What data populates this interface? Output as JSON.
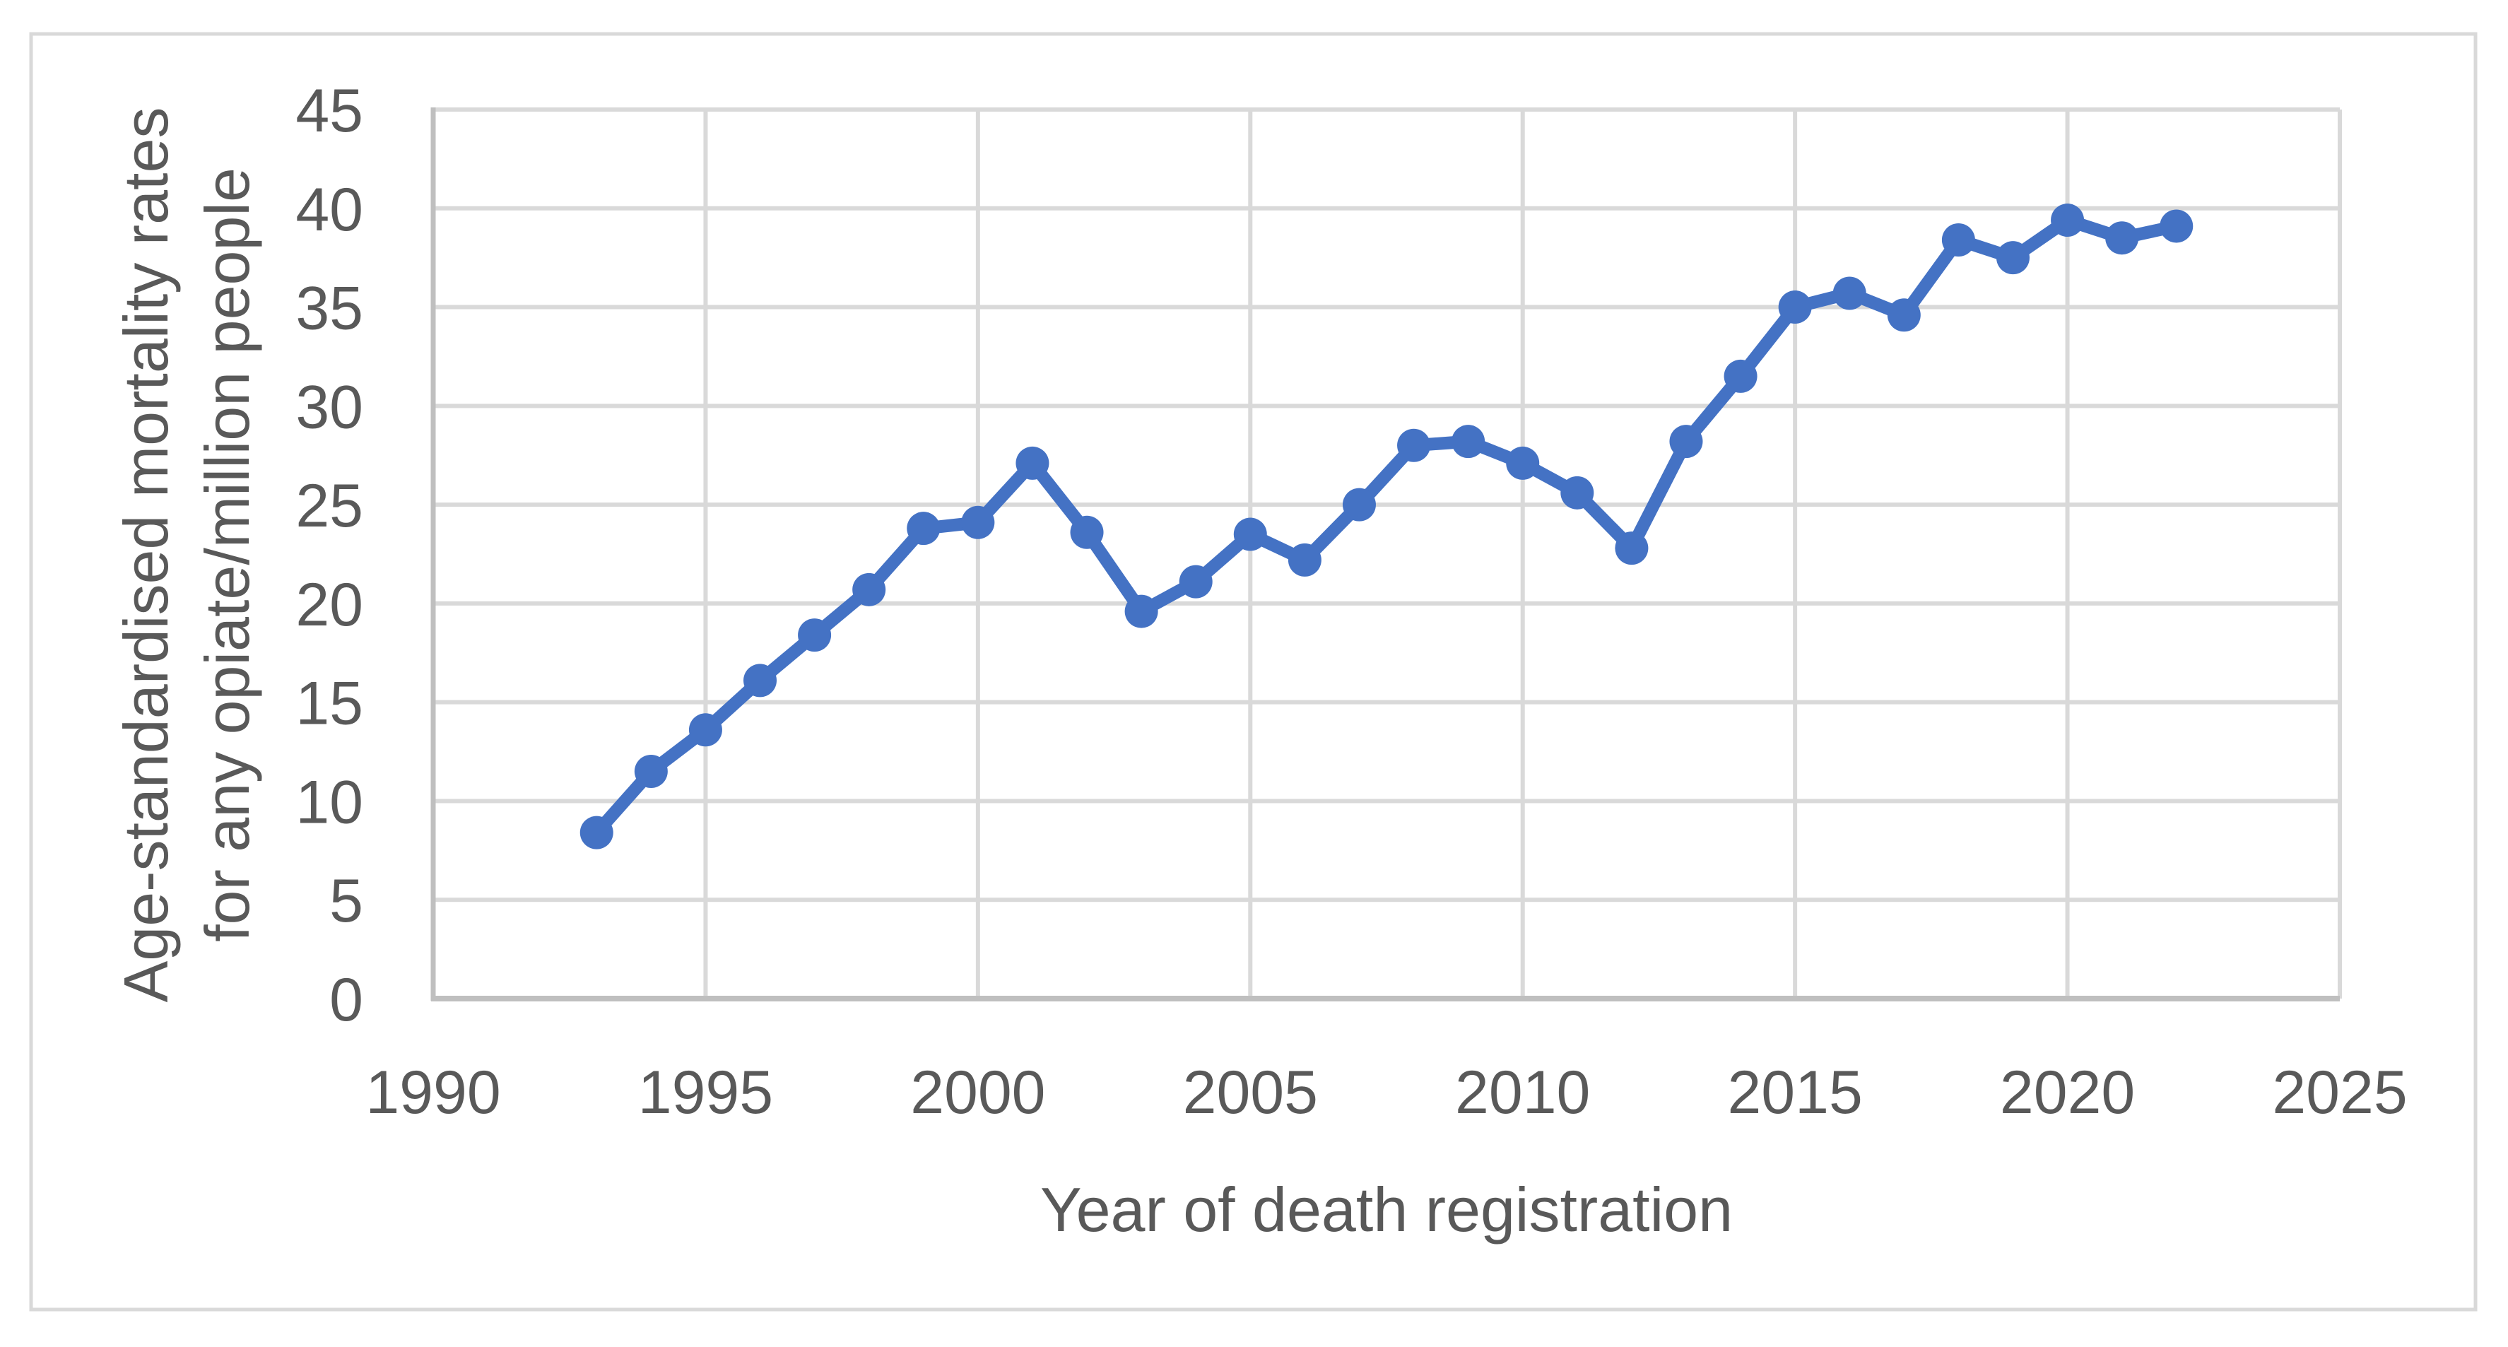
{
  "figure": {
    "background_color": "#ffffff",
    "border_color": "#d9d9d9"
  },
  "chart_data": {
    "type": "line",
    "title": "",
    "xlabel": "Year of death registration",
    "ylabel_lines": [
      "Age-standardised mortality rates",
      "for any opiate/million people"
    ],
    "ylabel": "Age-standardised mortality rates for any opiate/million people",
    "x": [
      1993,
      1994,
      1995,
      1996,
      1997,
      1998,
      1999,
      2000,
      2001,
      2002,
      2003,
      2004,
      2005,
      2006,
      2007,
      2008,
      2009,
      2010,
      2011,
      2012,
      2013,
      2014,
      2015,
      2016,
      2017,
      2018,
      2019,
      2020,
      2021,
      2022
    ],
    "values": [
      8.4,
      11.5,
      13.6,
      16.1,
      18.4,
      20.7,
      23.8,
      24.1,
      27.1,
      23.6,
      19.6,
      21.1,
      23.5,
      22.2,
      25.0,
      28.0,
      28.2,
      27.1,
      25.6,
      22.8,
      28.2,
      31.5,
      35.0,
      35.7,
      34.6,
      38.4,
      37.5,
      39.4,
      38.5,
      39.1
    ],
    "xlim": [
      1990,
      2025
    ],
    "ylim": [
      0,
      45
    ],
    "xticks": [
      1990,
      1995,
      2000,
      2005,
      2010,
      2015,
      2020,
      2025
    ],
    "yticks": [
      0,
      5,
      10,
      15,
      20,
      25,
      30,
      35,
      40,
      45
    ],
    "grid": true,
    "legend": "none",
    "line_color": "#4472c4",
    "marker": "circle",
    "gridline_color": "#d9d9d9",
    "axis_line_color": "#bfbfbf",
    "tick_label_color": "#595959",
    "axis_title_color": "#595959"
  }
}
